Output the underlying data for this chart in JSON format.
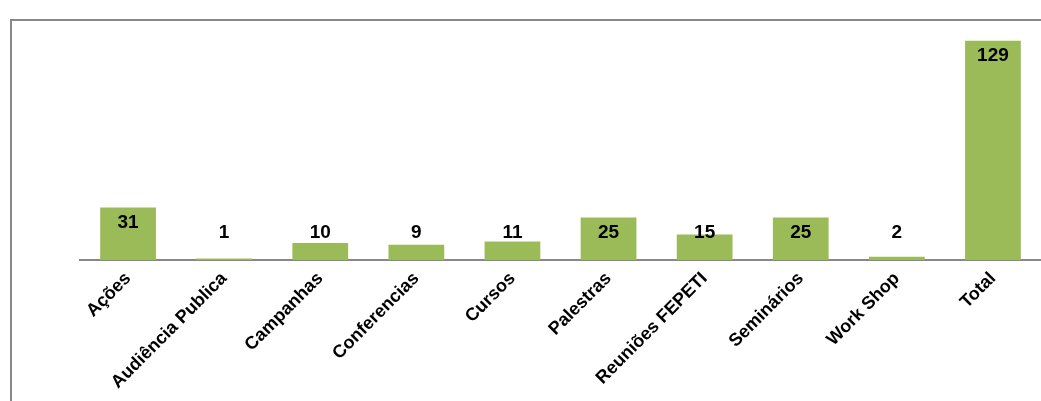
{
  "chart_data": {
    "type": "bar",
    "categories": [
      "Ações",
      "Audiência Publica",
      "Campanhas",
      "Conferencias",
      "Cursos",
      "Palestras",
      "Reuniões FEPETI",
      "Seminários",
      "Work Shop",
      "Total"
    ],
    "values": [
      31,
      1,
      10,
      9,
      11,
      25,
      15,
      25,
      2,
      129
    ],
    "color": "#9bbb59",
    "data_labels": true,
    "grid": false,
    "legend": false
  }
}
